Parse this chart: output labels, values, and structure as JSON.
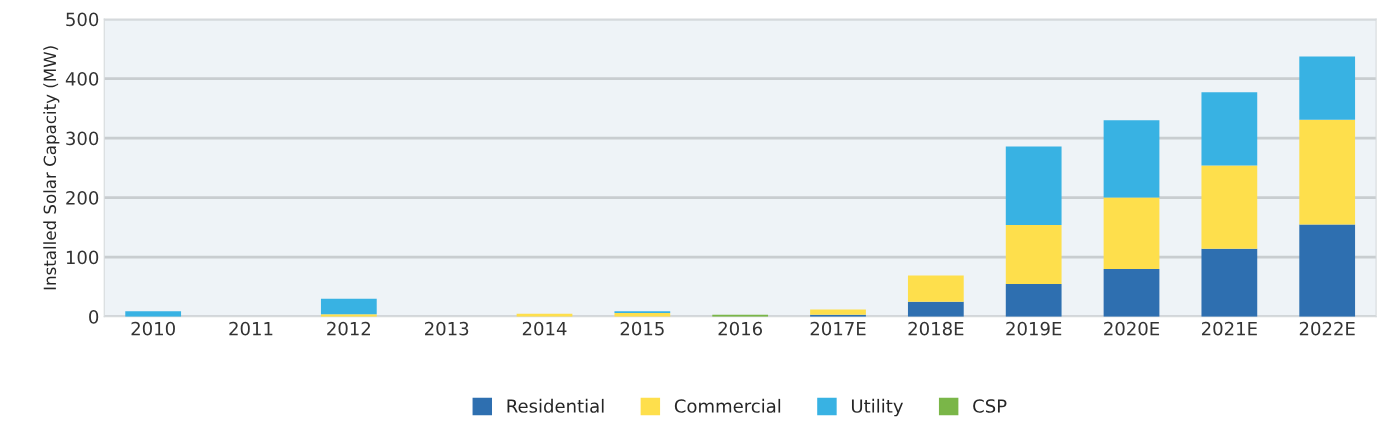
{
  "chart_data": {
    "type": "bar",
    "stacked": true,
    "ylabel": "Installed Solar Capacity (MW)",
    "categories": [
      "2010",
      "2011",
      "2012",
      "2013",
      "2014",
      "2015",
      "2016",
      "2017E",
      "2018E",
      "2019E",
      "2020E",
      "2021E",
      "2022E"
    ],
    "series": [
      {
        "name": "Residential",
        "color": "#2e6fb0",
        "values": [
          0,
          0,
          0,
          0,
          0,
          0,
          0,
          3,
          25,
          55,
          80,
          114,
          155
        ]
      },
      {
        "name": "Commercial",
        "color": "#fedf4c",
        "values": [
          0,
          0,
          4,
          0,
          5,
          6,
          0,
          9,
          44,
          99,
          120,
          140,
          176
        ]
      },
      {
        "name": "Utility",
        "color": "#38b2e3",
        "values": [
          9,
          0,
          26,
          0,
          0,
          3,
          0,
          0,
          0,
          132,
          130,
          123,
          106
        ]
      },
      {
        "name": "CSP",
        "color": "#7ab648",
        "values": [
          0,
          0,
          0,
          0,
          0,
          0,
          3,
          0,
          0,
          0,
          0,
          0,
          0
        ]
      }
    ],
    "ylim": [
      0,
      500
    ],
    "yticks": [
      0,
      100,
      200,
      300,
      400,
      500
    ],
    "grid": "y",
    "legend": "bottom"
  }
}
